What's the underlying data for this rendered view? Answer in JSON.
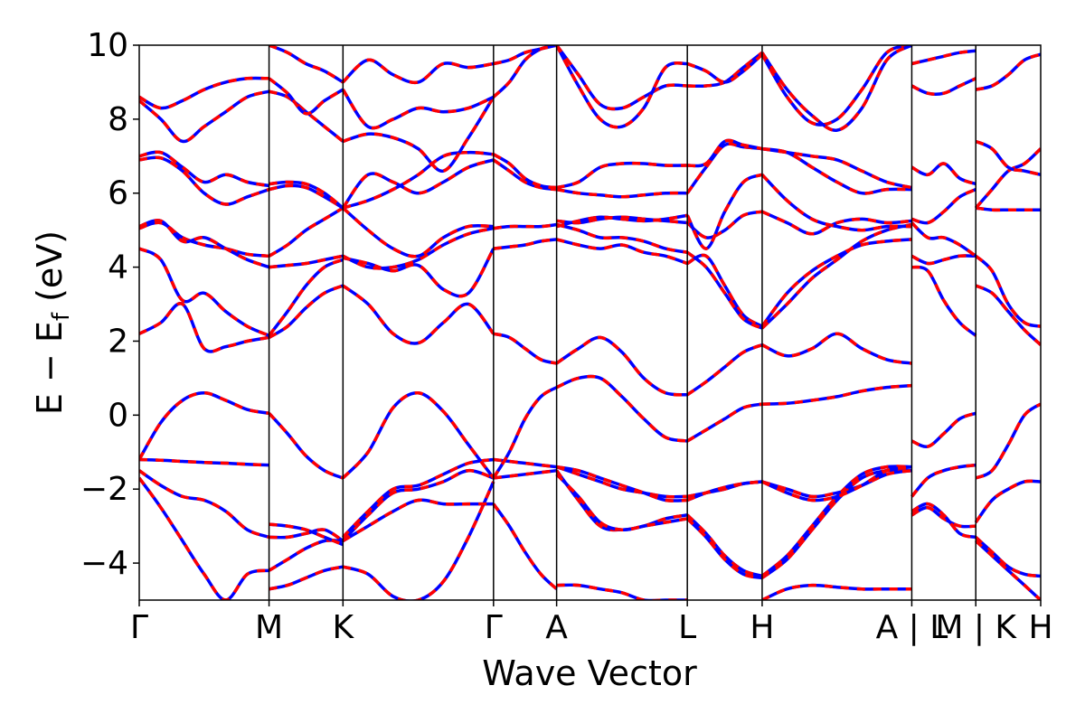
{
  "chart_data": {
    "type": "line",
    "xlabel": "Wave Vector",
    "ylabel": {
      "main": "E − E",
      "sub": "f",
      "unit": " (eV)"
    },
    "ylim": [
      -5,
      10
    ],
    "yticks": [
      {
        "value": -4,
        "label": "−4"
      },
      {
        "value": -2,
        "label": "−2"
      },
      {
        "value": 0,
        "label": "0"
      },
      {
        "value": 2,
        "label": "2"
      },
      {
        "value": 4,
        "label": "4"
      },
      {
        "value": 6,
        "label": "6"
      },
      {
        "value": 8,
        "label": "8"
      },
      {
        "value": 10,
        "label": "10"
      }
    ],
    "xrange": [
      0,
      10
    ],
    "kpoints": [
      {
        "x": 0.0,
        "label": "Γ"
      },
      {
        "x": 1.44,
        "label": "M"
      },
      {
        "x": 2.26,
        "label": "K"
      },
      {
        "x": 3.93,
        "label": "Γ"
      },
      {
        "x": 4.63,
        "label": "A"
      },
      {
        "x": 6.08,
        "label": "L"
      },
      {
        "x": 6.91,
        "label": "H"
      },
      {
        "x": 8.57,
        "label": "A | L"
      },
      {
        "x": 9.28,
        "label": "M | K"
      },
      {
        "x": 10.0,
        "label": "H"
      }
    ],
    "series_styles": [
      {
        "color": "#0000ff",
        "dash": "none",
        "width": 3.5
      },
      {
        "color": "#ff0000",
        "dash": "9,9",
        "width": 3.5
      }
    ],
    "segments": [
      {
        "x": [
          0,
          1.44
        ],
        "bands": [
          [
            -1.7,
            -2.5,
            -3.4,
            -4.3,
            -5.0,
            -4.3,
            -4.2
          ],
          [
            -1.5,
            -1.9,
            -2.2,
            -2.3,
            -2.6,
            -3.1,
            -3.3
          ],
          [
            -1.2,
            -1.22,
            -1.25,
            -1.28,
            -1.3,
            -1.33,
            -1.35
          ],
          [
            -1.2,
            -0.2,
            0.4,
            0.6,
            0.4,
            0.15,
            0.05
          ],
          [
            2.2,
            2.5,
            3.0,
            1.8,
            1.85,
            2.0,
            2.1
          ],
          [
            4.5,
            4.2,
            3.1,
            3.3,
            2.8,
            2.4,
            2.15
          ],
          [
            5.05,
            5.2,
            4.8,
            4.6,
            4.5,
            4.35,
            4.3
          ],
          [
            5.1,
            5.25,
            4.7,
            4.8,
            4.5,
            4.2,
            4.0
          ],
          [
            6.9,
            6.95,
            6.6,
            6.0,
            5.7,
            5.9,
            6.1
          ],
          [
            7.0,
            7.1,
            6.7,
            6.3,
            6.5,
            6.3,
            6.2
          ],
          [
            8.5,
            8.0,
            7.4,
            7.8,
            8.2,
            8.6,
            8.75
          ],
          [
            8.6,
            8.3,
            8.5,
            8.8,
            9.0,
            9.1,
            9.1
          ]
        ]
      },
      {
        "x": [
          1.44,
          2.26
        ],
        "bands": [
          [
            -4.7,
            -4.6,
            -4.4,
            -4.2,
            -4.1
          ],
          [
            -4.2,
            -3.9,
            -3.6,
            -3.4,
            -3.4
          ],
          [
            -3.3,
            -3.3,
            -3.2,
            -3.1,
            -3.4
          ],
          [
            -2.95,
            -3.0,
            -3.1,
            -3.3,
            -3.5
          ],
          [
            0.05,
            -0.5,
            -1.1,
            -1.5,
            -1.7
          ],
          [
            2.1,
            2.4,
            2.9,
            3.3,
            3.5
          ],
          [
            2.15,
            2.8,
            3.5,
            4.0,
            4.2
          ],
          [
            4.0,
            4.05,
            4.1,
            4.2,
            4.3
          ],
          [
            4.3,
            4.6,
            5.0,
            5.3,
            5.6
          ],
          [
            6.1,
            6.2,
            6.15,
            5.9,
            5.6
          ],
          [
            6.25,
            6.3,
            6.25,
            6.0,
            5.6
          ],
          [
            8.75,
            8.6,
            8.2,
            7.8,
            7.4
          ],
          [
            9.1,
            8.7,
            8.15,
            8.5,
            8.8
          ],
          [
            10.0,
            9.8,
            9.5,
            9.3,
            9.0
          ]
        ]
      },
      {
        "x": [
          2.26,
          3.93
        ],
        "bands": [
          [
            -4.1,
            -4.3,
            -4.9,
            -5.0,
            -4.5,
            -3.3,
            -1.8
          ],
          [
            -3.4,
            -3.0,
            -2.6,
            -2.3,
            -2.4,
            -2.4,
            -2.4
          ],
          [
            -3.4,
            -2.7,
            -2.1,
            -2.0,
            -1.8,
            -1.5,
            -1.7
          ],
          [
            -3.3,
            -2.6,
            -2.0,
            -1.9,
            -1.6,
            -1.3,
            -1.2
          ],
          [
            -1.7,
            -1.0,
            0.2,
            0.6,
            0.1,
            -0.8,
            -1.7
          ],
          [
            3.5,
            3.0,
            2.2,
            1.95,
            2.5,
            3.0,
            2.2
          ],
          [
            4.25,
            4.1,
            3.9,
            4.05,
            3.4,
            3.3,
            4.5
          ],
          [
            4.3,
            4.0,
            4.0,
            4.2,
            4.6,
            4.9,
            5.05
          ],
          [
            5.6,
            5.0,
            4.5,
            4.3,
            4.8,
            5.1,
            5.1
          ],
          [
            5.6,
            6.5,
            6.3,
            6.0,
            6.3,
            6.7,
            6.9
          ],
          [
            5.6,
            5.8,
            6.1,
            6.5,
            7.0,
            7.1,
            7.05
          ],
          [
            7.4,
            7.6,
            7.5,
            7.2,
            6.6,
            7.5,
            8.6
          ],
          [
            8.8,
            7.8,
            8.0,
            8.3,
            8.2,
            8.3,
            8.6
          ],
          [
            9.0,
            9.6,
            9.2,
            9.0,
            9.5,
            9.4,
            9.5
          ]
        ]
      },
      {
        "x": [
          3.93,
          4.63
        ],
        "bands": [
          [
            -1.7,
            -1.65,
            -1.6,
            -1.55,
            -1.5
          ],
          [
            -1.2,
            -1.25,
            -1.3,
            -1.35,
            -1.4
          ],
          [
            -1.7,
            -1.0,
            -0.1,
            0.5,
            0.75
          ],
          [
            -2.4,
            -3.0,
            -3.7,
            -4.3,
            -4.7
          ],
          [
            2.2,
            2.1,
            1.8,
            1.5,
            1.4
          ],
          [
            4.5,
            4.55,
            4.6,
            4.7,
            4.75
          ],
          [
            5.05,
            5.1,
            5.1,
            5.1,
            5.15
          ],
          [
            6.9,
            6.6,
            6.3,
            6.15,
            6.1
          ],
          [
            7.05,
            6.8,
            6.4,
            6.2,
            6.15
          ],
          [
            8.6,
            9.0,
            9.6,
            9.9,
            10.0
          ],
          [
            9.5,
            9.6,
            9.8,
            9.9,
            10.0
          ]
        ]
      },
      {
        "x": [
          4.63,
          6.08
        ],
        "bands": [
          [
            -1.5,
            -2.3,
            -3.0,
            -3.1,
            -3.0,
            -2.8,
            -2.7
          ],
          [
            -1.6,
            -2.2,
            -2.9,
            -3.1,
            -3.0,
            -2.9,
            -2.8
          ],
          [
            -1.4,
            -1.6,
            -1.8,
            -2.0,
            -2.1,
            -2.2,
            -2.2
          ],
          [
            -1.4,
            -1.5,
            -1.7,
            -1.9,
            -2.1,
            -2.3,
            -2.3
          ],
          [
            0.75,
            1.0,
            1.0,
            0.5,
            -0.1,
            -0.6,
            -0.7
          ],
          [
            1.4,
            1.8,
            2.1,
            1.7,
            1.0,
            0.6,
            0.55
          ],
          [
            -4.6,
            -4.6,
            -4.7,
            -4.8,
            -5.0,
            -5.0,
            -5.0
          ],
          [
            4.75,
            4.6,
            4.5,
            4.6,
            4.4,
            4.3,
            4.1
          ],
          [
            5.15,
            5.0,
            4.8,
            4.8,
            4.7,
            4.5,
            4.4
          ],
          [
            5.25,
            5.2,
            5.3,
            5.35,
            5.3,
            5.25,
            5.2
          ],
          [
            5.1,
            5.25,
            5.35,
            5.3,
            5.25,
            5.3,
            5.4
          ],
          [
            6.1,
            6.0,
            5.95,
            5.9,
            5.95,
            6.0,
            6.0
          ],
          [
            6.15,
            6.3,
            6.7,
            6.8,
            6.8,
            6.75,
            6.75
          ],
          [
            10.0,
            9.2,
            8.4,
            8.3,
            8.6,
            8.9,
            8.9
          ],
          [
            10.0,
            8.9,
            8.0,
            7.8,
            8.3,
            9.4,
            9.5
          ]
        ]
      },
      {
        "x": [
          6.08,
          6.91
        ],
        "bands": [
          [
            -2.7,
            -3.2,
            -3.8,
            -4.2,
            -4.35
          ],
          [
            -2.8,
            -3.3,
            -3.9,
            -4.3,
            -4.4
          ],
          [
            -2.2,
            -2.1,
            -2.0,
            -1.85,
            -1.8
          ],
          [
            -2.3,
            -2.1,
            -1.95,
            -1.85,
            -1.8
          ],
          [
            -0.7,
            -0.4,
            -0.1,
            0.2,
            0.3
          ],
          [
            0.55,
            0.9,
            1.3,
            1.7,
            1.9
          ],
          [
            4.1,
            4.3,
            3.5,
            2.7,
            2.4
          ],
          [
            4.4,
            4.0,
            3.3,
            2.6,
            2.35
          ],
          [
            5.2,
            4.8,
            5.0,
            5.4,
            5.5
          ],
          [
            5.4,
            4.5,
            5.5,
            6.3,
            6.5
          ],
          [
            6.0,
            6.7,
            7.3,
            7.25,
            7.2
          ],
          [
            6.75,
            6.8,
            7.4,
            7.3,
            7.2
          ],
          [
            8.9,
            8.9,
            9.0,
            9.4,
            9.8
          ],
          [
            9.5,
            9.3,
            9.0,
            9.3,
            9.75
          ]
        ]
      },
      {
        "x": [
          6.91,
          8.57
        ],
        "bands": [
          [
            -4.4,
            -3.9,
            -3.1,
            -2.3,
            -1.7,
            -1.5,
            -1.5
          ],
          [
            -4.35,
            -3.8,
            -3.0,
            -2.2,
            -1.6,
            -1.4,
            -1.4
          ],
          [
            -1.8,
            -2.0,
            -2.2,
            -2.1,
            -1.9,
            -1.6,
            -1.5
          ],
          [
            -1.8,
            -2.1,
            -2.3,
            -2.2,
            -1.9,
            -1.5,
            -1.4
          ],
          [
            0.3,
            0.32,
            0.4,
            0.5,
            0.65,
            0.75,
            0.8
          ],
          [
            1.9,
            1.6,
            1.8,
            2.2,
            1.8,
            1.5,
            1.4
          ],
          [
            -5.0,
            -4.7,
            -4.6,
            -4.65,
            -4.7,
            -4.7,
            -4.7
          ],
          [
            2.4,
            3.3,
            3.9,
            4.3,
            4.6,
            4.7,
            4.75
          ],
          [
            2.35,
            3.0,
            3.7,
            4.2,
            4.7,
            5.0,
            5.15
          ],
          [
            5.5,
            5.2,
            4.9,
            5.2,
            5.3,
            5.2,
            5.25
          ],
          [
            6.5,
            5.8,
            5.3,
            5.1,
            5.0,
            5.1,
            5.1
          ],
          [
            7.2,
            7.1,
            6.7,
            6.3,
            6.0,
            6.1,
            6.1
          ],
          [
            7.2,
            7.1,
            7.0,
            6.9,
            6.6,
            6.3,
            6.15
          ],
          [
            9.75,
            8.6,
            7.9,
            8.0,
            8.8,
            9.8,
            10.0
          ],
          [
            9.8,
            8.8,
            8.1,
            7.7,
            8.3,
            9.6,
            10.0
          ]
        ]
      },
      {
        "x": [
          8.57,
          9.28
        ],
        "bands": [
          [
            -2.7,
            -2.5,
            -2.8,
            -3.0,
            -3.0
          ],
          [
            -2.6,
            -2.4,
            -2.7,
            -3.2,
            -3.3
          ],
          [
            -2.2,
            -1.7,
            -1.5,
            -1.4,
            -1.35
          ],
          [
            -0.7,
            -0.85,
            -0.5,
            -0.1,
            0.05
          ],
          [
            4.3,
            4.1,
            4.2,
            4.3,
            4.3
          ],
          [
            4.0,
            3.9,
            3.1,
            2.5,
            2.15
          ],
          [
            5.2,
            4.8,
            4.8,
            4.6,
            4.3
          ],
          [
            5.3,
            5.2,
            5.5,
            5.9,
            6.1
          ],
          [
            6.7,
            6.5,
            6.8,
            6.4,
            6.25
          ],
          [
            8.9,
            8.7,
            8.7,
            8.9,
            9.1
          ],
          [
            9.5,
            9.6,
            9.7,
            9.8,
            9.85
          ]
        ]
      },
      {
        "x": [
          9.28,
          10.0
        ],
        "bands": [
          [
            -3.3,
            -3.7,
            -4.1,
            -4.3,
            -4.35
          ],
          [
            -2.9,
            -2.3,
            -2.0,
            -1.8,
            -1.8
          ],
          [
            -1.7,
            -1.5,
            -0.8,
            0.0,
            0.3
          ],
          [
            -3.4,
            -3.8,
            -4.2,
            -4.6,
            -5.0
          ],
          [
            3.5,
            3.3,
            2.8,
            2.3,
            1.9
          ],
          [
            4.3,
            3.9,
            3.0,
            2.5,
            2.4
          ],
          [
            5.6,
            5.55,
            5.55,
            5.55,
            5.55
          ],
          [
            5.6,
            6.1,
            6.6,
            6.8,
            7.2
          ],
          [
            7.4,
            7.2,
            6.7,
            6.6,
            6.5
          ],
          [
            8.8,
            8.9,
            9.2,
            9.6,
            9.75
          ]
        ]
      }
    ]
  }
}
